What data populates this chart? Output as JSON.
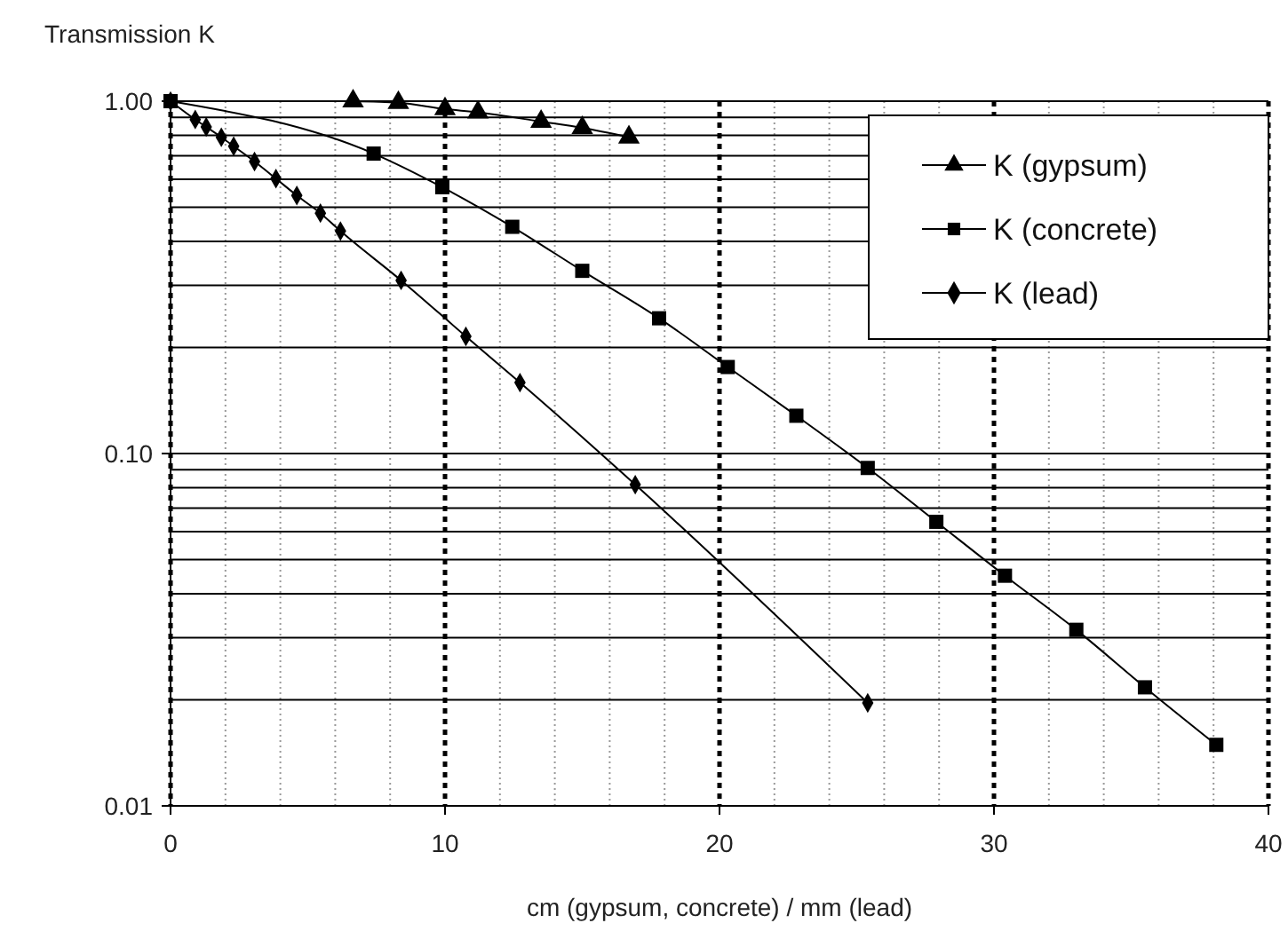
{
  "chart_data": {
    "type": "line",
    "ylabel": "Transmission K",
    "xlabel": "cm (gypsum, concrete) / mm (lead)",
    "xlim": [
      0,
      40
    ],
    "xticks": [
      0,
      10,
      20,
      30,
      40
    ],
    "ylim": [
      0.01,
      1
    ],
    "yticks": [
      {
        "value": 0.01,
        "label": "0.01"
      },
      {
        "value": 0.1,
        "label": "0.10"
      },
      {
        "value": 1,
        "label": "1.00"
      }
    ],
    "log": "y",
    "grid": true,
    "legend": "top right",
    "line_style": "solid",
    "series": [
      {
        "name": "K (gypsum)",
        "color": "#000000",
        "marker": "triangle",
        "x": [
          6.65,
          8.3,
          10.0,
          11.2,
          13.5,
          15.0,
          16.7
        ],
        "values": [
          1.0,
          0.99,
          0.95,
          0.93,
          0.875,
          0.84,
          0.79
        ]
      },
      {
        "name": "K (concrete)",
        "color": "#000000",
        "marker": "square",
        "x": [
          0,
          7.4,
          9.9,
          12.45,
          15.0,
          17.8,
          20.3,
          22.8,
          25.4,
          27.9,
          30.4,
          33.0,
          35.5,
          38.1
        ],
        "values": [
          1.0,
          0.71,
          0.57,
          0.44,
          0.33,
          0.242,
          0.176,
          0.128,
          0.091,
          0.064,
          0.045,
          0.0316,
          0.0217,
          0.0149
        ]
      },
      {
        "name": "K (lead)",
        "color": "#000000",
        "marker": "diamond",
        "x": [
          0,
          0.9,
          1.3,
          1.85,
          2.3,
          3.06,
          3.84,
          4.6,
          5.46,
          6.19,
          8.4,
          10.76,
          12.73,
          16.93,
          25.4
        ],
        "values": [
          1.0,
          0.887,
          0.845,
          0.79,
          0.745,
          0.674,
          0.603,
          0.54,
          0.481,
          0.428,
          0.31,
          0.215,
          0.159,
          0.0816,
          0.0196
        ]
      }
    ]
  }
}
